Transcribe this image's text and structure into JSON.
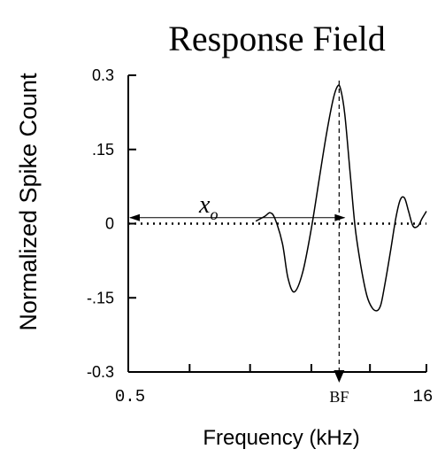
{
  "chart_data": {
    "type": "line",
    "title": "Response Field",
    "xlabel": "Frequency  (kHz)",
    "ylabel": "Normalized Spike Count",
    "x_scale": "log",
    "xlim": [
      0.5,
      16
    ],
    "ylim": [
      -0.3,
      0.3
    ],
    "grid": false,
    "y_ticks": [
      {
        "value": 0.3,
        "label": "0.3"
      },
      {
        "value": 0.15,
        "label": ".15"
      },
      {
        "value": 0,
        "label": "0"
      },
      {
        "value": -0.15,
        "label": "-.15"
      },
      {
        "value": -0.3,
        "label": "-0.3"
      }
    ],
    "x_ticks": [
      {
        "value": 0.5,
        "label": "0.5"
      },
      {
        "value": 16,
        "label": "16"
      }
    ],
    "x_minor_ticks": [
      1.02,
      2.06,
      4.2,
      8.3
    ],
    "reference_line": {
      "y": 0,
      "style": "dotted"
    },
    "best_frequency": {
      "x": 5.8,
      "label": "BF"
    },
    "annotation": {
      "text": "x",
      "subscript": "o",
      "from_x": 0.5,
      "to_x": 6.3,
      "y": 0.012
    },
    "series": [
      {
        "x": [
          2.2,
          2.45,
          2.6,
          2.75,
          3.0,
          3.2,
          3.45,
          3.8,
          4.2,
          4.6,
          5.0,
          5.4,
          5.7,
          5.9,
          6.2,
          6.6,
          7.0,
          7.5,
          8.0,
          8.5,
          9.0,
          9.4,
          9.8,
          10.5,
          11.2,
          11.8,
          12.4,
          13.0,
          13.7,
          14.5,
          15.2,
          16.0
        ],
        "y": [
          0.005,
          0.015,
          0.022,
          0.01,
          -0.04,
          -0.11,
          -0.138,
          -0.098,
          -0.01,
          0.09,
          0.18,
          0.25,
          0.278,
          0.272,
          0.22,
          0.1,
          -0.01,
          -0.09,
          -0.145,
          -0.17,
          -0.176,
          -0.165,
          -0.13,
          -0.06,
          0.01,
          0.048,
          0.052,
          0.025,
          -0.005,
          -0.005,
          0.01,
          0.025
        ]
      }
    ]
  }
}
